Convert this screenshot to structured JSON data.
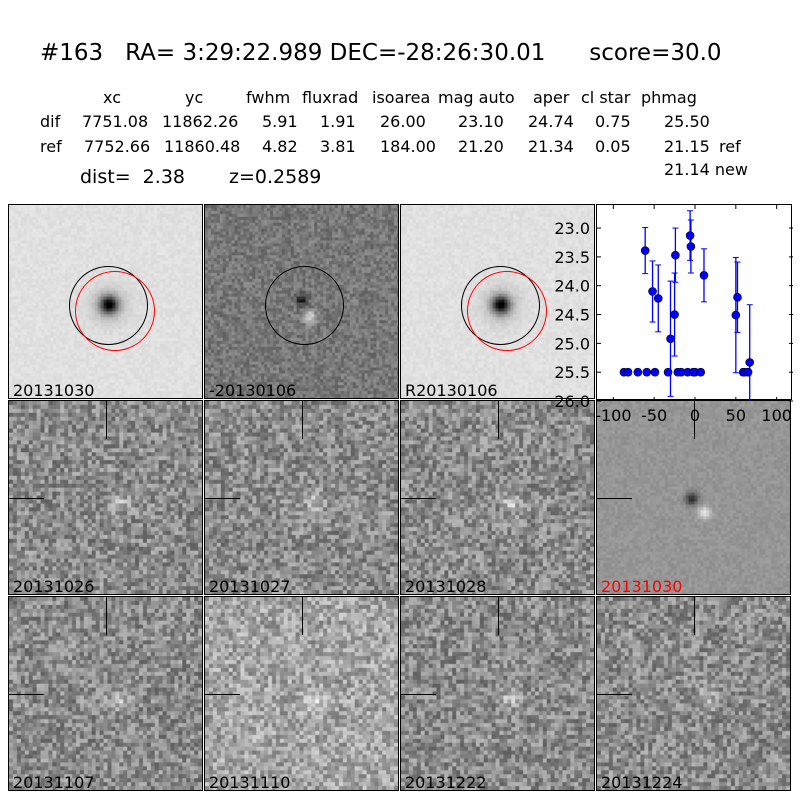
{
  "title": "#163   RA= 3:29:22.989 DEC=-28:26:30.01      score=30.0",
  "table": {
    "headers": [
      "xc",
      "yc",
      "fwhm",
      "fluxrad",
      "isoarea",
      "mag auto",
      "aper",
      "cl star",
      "phmag"
    ],
    "rows": [
      {
        "label": "dif",
        "values": [
          "7751.08",
          "11862.26",
          "5.91",
          "1.91",
          "26.00",
          "23.10",
          "24.74",
          "0.75",
          "25.50"
        ],
        "suffix": ""
      },
      {
        "label": "ref",
        "values": [
          "7752.66",
          "11860.48",
          "4.82",
          "3.81",
          "184.00",
          "21.20",
          "21.34",
          "0.05",
          "21.15"
        ],
        "suffix": "ref"
      }
    ],
    "extra_phmag": "21.14 new",
    "dist": "dist=  2.38",
    "z": "z=0.2589"
  },
  "panels": [
    {
      "label": "20131030",
      "type": "star",
      "color": "#000000"
    },
    {
      "label": "-20130106",
      "type": "diff",
      "color": "#000000"
    },
    {
      "label": "R20130106",
      "type": "star",
      "color": "#000000"
    },
    {
      "label": "20131026",
      "type": "noise",
      "color": "#000000"
    },
    {
      "label": "20131027",
      "type": "noise",
      "color": "#000000"
    },
    {
      "label": "20131028",
      "type": "noise",
      "color": "#000000"
    },
    {
      "label": "20131030",
      "type": "diffsmooth",
      "color": "#ff0000"
    },
    {
      "label": "20131107",
      "type": "noise",
      "color": "#000000"
    },
    {
      "label": "20131110",
      "type": "noise",
      "color": "#000000"
    },
    {
      "label": "20131222",
      "type": "noise",
      "color": "#000000"
    },
    {
      "label": "20131224",
      "type": "noise",
      "color": "#000000"
    }
  ],
  "chart_data": {
    "type": "scatter",
    "xlim": [
      -120,
      120
    ],
    "ylim": [
      26.0,
      22.6
    ],
    "y_inverted": true,
    "xticks": [
      "-100",
      "-50",
      "0",
      "50",
      "100"
    ],
    "xtick_values": [
      -100,
      -50,
      0,
      50,
      100
    ],
    "yticks": [
      "23.0",
      "23.5",
      "24.0",
      "24.5",
      "25.0",
      "25.5",
      "26.0"
    ],
    "ytick_values": [
      23.0,
      23.5,
      24.0,
      24.5,
      25.0,
      25.5,
      26.0
    ],
    "color": "#0000ff",
    "points": [
      {
        "x": -87,
        "y": 25.5,
        "err": 0.05
      },
      {
        "x": -82,
        "y": 25.5,
        "err": 0.05
      },
      {
        "x": -70,
        "y": 25.5,
        "err": 0.05
      },
      {
        "x": -59,
        "y": 25.5,
        "err": 0.05
      },
      {
        "x": -49,
        "y": 25.5,
        "err": 0.05
      },
      {
        "x": -33,
        "y": 25.5,
        "err": 0.05
      },
      {
        "x": -21,
        "y": 25.5,
        "err": 0.05
      },
      {
        "x": -17,
        "y": 25.5,
        "err": 0.05
      },
      {
        "x": -9,
        "y": 25.5,
        "err": 0.05
      },
      {
        "x": -2,
        "y": 25.5,
        "err": 0.05
      },
      {
        "x": 0,
        "y": 25.5,
        "err": 0.05
      },
      {
        "x": 7,
        "y": 25.5,
        "err": 0.05
      },
      {
        "x": 59,
        "y": 25.5,
        "err": 0.05
      },
      {
        "x": 61,
        "y": 25.5,
        "err": 0.05
      },
      {
        "x": 65,
        "y": 25.5,
        "err": 0.05
      },
      {
        "x": -61,
        "y": 23.39,
        "err": 0.4
      },
      {
        "x": -52,
        "y": 24.1,
        "err": 0.53
      },
      {
        "x": -45,
        "y": 24.22,
        "err": 0.58
      },
      {
        "x": -30,
        "y": 24.92,
        "err": 1.0
      },
      {
        "x": -25,
        "y": 24.5,
        "err": 0.72
      },
      {
        "x": -24,
        "y": 23.47,
        "err": 0.47
      },
      {
        "x": -6,
        "y": 23.13,
        "err": 0.43
      },
      {
        "x": -5,
        "y": 23.32,
        "err": 0.46
      },
      {
        "x": 11,
        "y": 23.82,
        "err": 0.46
      },
      {
        "x": 50,
        "y": 24.51,
        "err": 1.0
      },
      {
        "x": 52,
        "y": 24.2,
        "err": 0.61
      },
      {
        "x": 67,
        "y": 25.33,
        "err": 1.0
      }
    ]
  }
}
